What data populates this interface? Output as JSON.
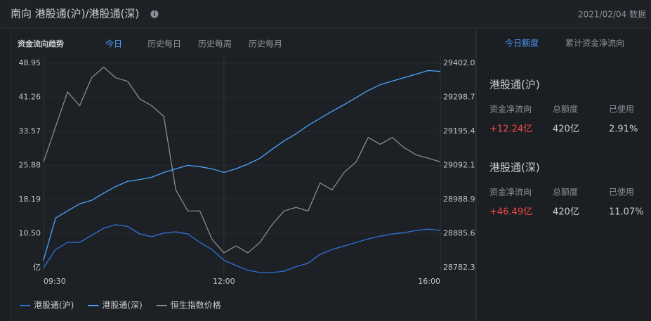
{
  "header": {
    "title": "南向 港股通(沪)/港股通(深)",
    "date": "2021/02/04 数据"
  },
  "chart_panel": {
    "title": "资金流向趋势",
    "tabs": [
      "今日",
      "历史每日",
      "历史每周",
      "历史每月"
    ],
    "active_tab": 0
  },
  "chart_data": {
    "type": "line",
    "categories": [
      "09:30",
      null,
      null,
      null,
      null,
      null,
      null,
      null,
      null,
      null,
      null,
      null,
      null,
      null,
      null,
      "12:00",
      null,
      null,
      null,
      null,
      null,
      null,
      null,
      null,
      null,
      null,
      null,
      null,
      null,
      null,
      null,
      null,
      null,
      "16:00"
    ],
    "series": [
      {
        "name": "港股通(沪)",
        "color": "#2f72dc",
        "axis": "y",
        "values": [
          2.8,
          6.9,
          8.5,
          8.5,
          10.1,
          11.7,
          12.5,
          12.1,
          10.4,
          9.8,
          10.6,
          10.9,
          10.4,
          8.5,
          6.9,
          4.5,
          3.3,
          2.2,
          1.7,
          1.7,
          2.0,
          3.0,
          3.8,
          5.8,
          6.9,
          7.7,
          8.5,
          9.3,
          9.9,
          10.4,
          10.7,
          11.2,
          11.5,
          11.2
        ]
      },
      {
        "name": "港股通(深)",
        "color": "#4aa3ff",
        "axis": "y",
        "values": [
          4.5,
          14.0,
          15.6,
          17.2,
          18.0,
          19.6,
          21.1,
          22.3,
          22.7,
          23.2,
          24.3,
          25.1,
          25.9,
          25.6,
          25.1,
          24.3,
          25.1,
          26.2,
          27.5,
          29.5,
          31.4,
          33.0,
          34.9,
          36.5,
          38.1,
          39.6,
          41.2,
          42.8,
          44.1,
          44.9,
          45.7,
          46.5,
          47.3,
          47.1
        ]
      },
      {
        "name": "恒生指数价格",
        "color": "#8a8a8a",
        "axis": "y2",
        "values": [
          29103,
          29209,
          29315,
          29273,
          29358,
          29390,
          29358,
          29347,
          29294,
          29273,
          29241,
          29018,
          28954,
          28954,
          28869,
          28827,
          28848,
          28827,
          28859,
          28912,
          28954,
          28965,
          28954,
          29039,
          29018,
          29071,
          29103,
          29177,
          29156,
          29177,
          29146,
          29124,
          29114,
          29103
        ]
      }
    ],
    "ylim": [
      2.81,
      48.95
    ],
    "yticks": [
      {
        "value": 10.5,
        "label": "10.50"
      },
      18.19,
      25.88,
      33.57,
      41.26,
      48.95
    ],
    "y_unit": "亿",
    "y2lim": [
      28782.3,
      29402.0
    ],
    "y2ticks": [
      28782.3,
      28885.6,
      28988.9,
      29092.1,
      29195.4,
      29298.7,
      {
        "value": 29402.0,
        "label": "29402.0"
      }
    ],
    "grid": true,
    "legend": "bottom"
  },
  "summary": {
    "tabs": [
      "今日额度",
      "累计资金净流向"
    ],
    "active_tab": 0,
    "columns": [
      "资金净流向",
      "总额度",
      "已使用"
    ],
    "groups": [
      {
        "name": "港股通(沪)",
        "values": [
          "+12.24亿",
          "420亿",
          "2.91%"
        ]
      },
      {
        "name": "港股通(深)",
        "values": [
          "+46.49亿",
          "420亿",
          "11.07%"
        ]
      }
    ]
  }
}
